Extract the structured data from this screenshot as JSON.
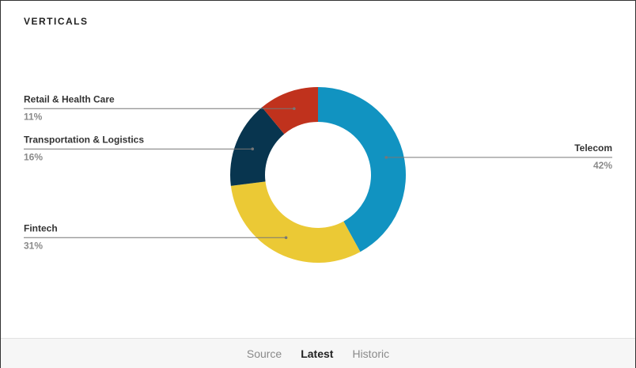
{
  "chart_data": {
    "type": "donut",
    "title": "VERTICALS",
    "categories": [
      "Telecom",
      "Fintech",
      "Transportation & Logistics",
      "Retail & Health Care"
    ],
    "values": [
      42,
      31,
      16,
      11
    ],
    "value_labels": [
      "42%",
      "31%",
      "16%",
      "11%"
    ],
    "colors": [
      "#1193c1",
      "#ebc935",
      "#08354f",
      "#c0321d"
    ]
  },
  "tabs": {
    "items": [
      "Source",
      "Latest",
      "Historic"
    ],
    "active": 1
  }
}
